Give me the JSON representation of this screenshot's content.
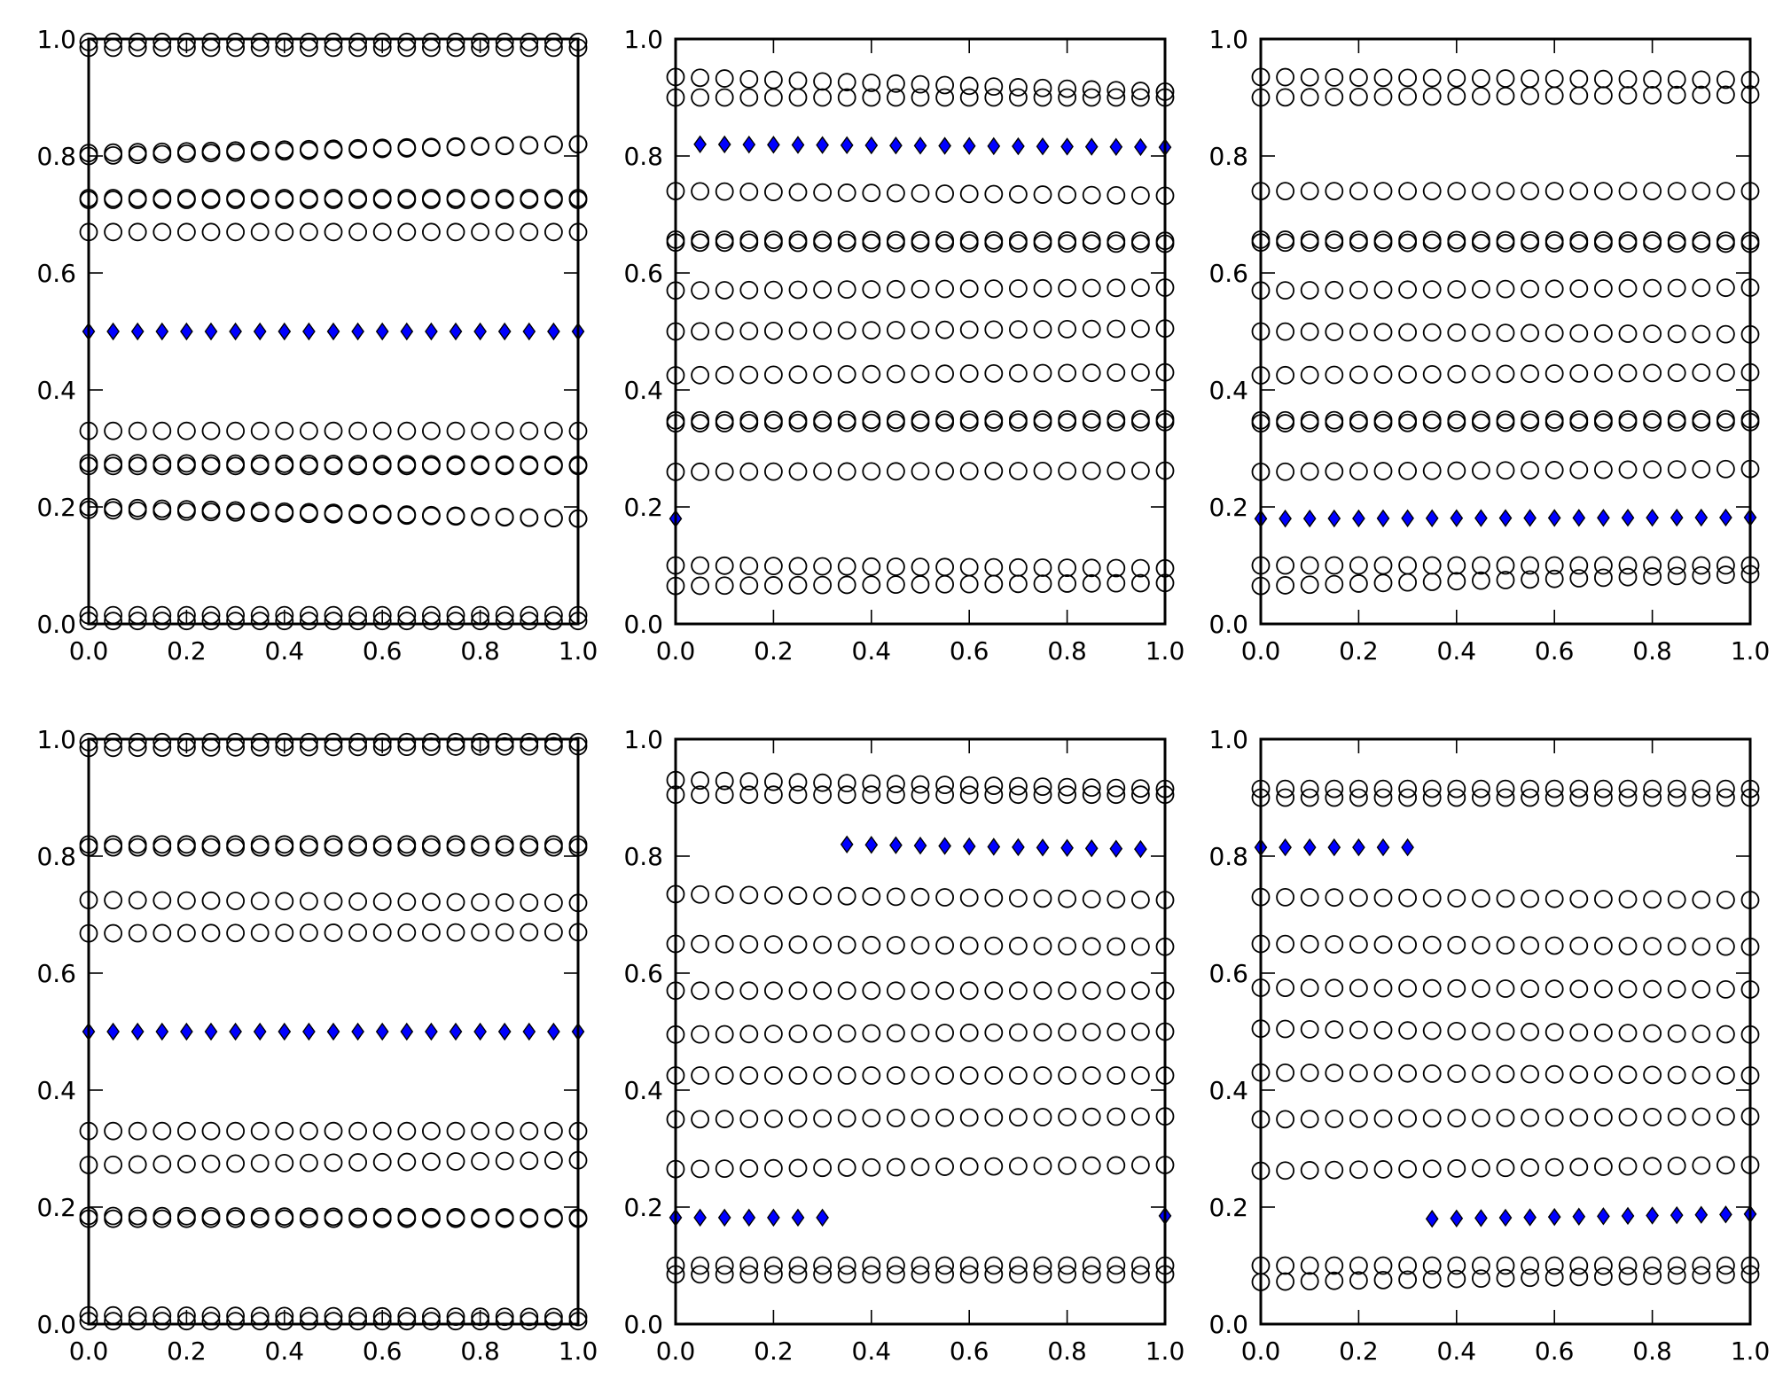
{
  "style": {
    "ring_color": "#000000",
    "diamond_fill": "#0000ff",
    "diamond_stroke": "#000000",
    "axis_color": "#000000",
    "background": "#ffffff"
  },
  "chart_data": [
    {
      "type": "scatter",
      "xlim": [
        0.0,
        1.0
      ],
      "ylim": [
        0.0,
        1.0
      ],
      "xticks": [
        "0.0",
        "0.2",
        "0.4",
        "0.6",
        "0.8",
        "1.0"
      ],
      "yticks": [
        "0.0",
        "0.2",
        "0.4",
        "0.6",
        "0.8",
        "1.0"
      ],
      "grid": false,
      "x": [
        0.0,
        0.05,
        0.1,
        0.15,
        0.2,
        0.25,
        0.3,
        0.35,
        0.4,
        0.45,
        0.5,
        0.55,
        0.6,
        0.65,
        0.7,
        0.75,
        0.8,
        0.85,
        0.9,
        0.95,
        1.0
      ],
      "ring_rows": [
        {
          "y_start": 0.005,
          "y_end": 0.005
        },
        {
          "y_start": 0.015,
          "y_end": 0.015
        },
        {
          "y_start": 0.2,
          "y_end": 0.18
        },
        {
          "y_start": 0.195,
          "y_end": 0.18
        },
        {
          "y_start": 0.27,
          "y_end": 0.27
        },
        {
          "y_start": 0.275,
          "y_end": 0.272
        },
        {
          "y_start": 0.33,
          "y_end": 0.33
        },
        {
          "y_start": 0.67,
          "y_end": 0.67
        },
        {
          "y_start": 0.725,
          "y_end": 0.725
        },
        {
          "y_start": 0.728,
          "y_end": 0.728
        },
        {
          "y_start": 0.8,
          "y_end": 0.82
        },
        {
          "y_start": 0.805,
          "y_end": 0.82
        },
        {
          "y_start": 0.985,
          "y_end": 0.985
        },
        {
          "y_start": 0.995,
          "y_end": 0.995
        }
      ],
      "diamond_segments": [
        {
          "x_from": 0.0,
          "x_to": 1.0,
          "y_start": 0.5,
          "y_end": 0.5
        }
      ]
    },
    {
      "type": "scatter",
      "xlim": [
        0.0,
        1.0
      ],
      "ylim": [
        0.0,
        1.0
      ],
      "xticks": [
        "0.0",
        "0.2",
        "0.4",
        "0.6",
        "0.8",
        "1.0"
      ],
      "yticks": [
        "0.0",
        "0.2",
        "0.4",
        "0.6",
        "0.8",
        "1.0"
      ],
      "grid": false,
      "x": [
        0.0,
        0.05,
        0.1,
        0.15,
        0.2,
        0.25,
        0.3,
        0.35,
        0.4,
        0.45,
        0.5,
        0.55,
        0.6,
        0.65,
        0.7,
        0.75,
        0.8,
        0.85,
        0.9,
        0.95,
        1.0
      ],
      "ring_rows": [
        {
          "y_start": 0.065,
          "y_end": 0.07
        },
        {
          "y_start": 0.1,
          "y_end": 0.095
        },
        {
          "y_start": 0.26,
          "y_end": 0.262
        },
        {
          "y_start": 0.343,
          "y_end": 0.345
        },
        {
          "y_start": 0.348,
          "y_end": 0.35
        },
        {
          "y_start": 0.425,
          "y_end": 0.43
        },
        {
          "y_start": 0.5,
          "y_end": 0.505
        },
        {
          "y_start": 0.57,
          "y_end": 0.575
        },
        {
          "y_start": 0.652,
          "y_end": 0.65
        },
        {
          "y_start": 0.657,
          "y_end": 0.655
        },
        {
          "y_start": 0.74,
          "y_end": 0.732
        },
        {
          "y_start": 0.9,
          "y_end": 0.9
        },
        {
          "y_start": 0.935,
          "y_end": 0.91
        }
      ],
      "diamond_segments": [
        {
          "x_from": 0.0,
          "x_to": 0.0,
          "y_start": 0.18,
          "y_end": 0.18
        },
        {
          "x_from": 0.05,
          "x_to": 1.0,
          "y_start": 0.82,
          "y_end": 0.815
        }
      ]
    },
    {
      "type": "scatter",
      "xlim": [
        0.0,
        1.0
      ],
      "ylim": [
        0.0,
        1.0
      ],
      "xticks": [
        "0.0",
        "0.2",
        "0.4",
        "0.6",
        "0.8",
        "1.0"
      ],
      "yticks": [
        "0.0",
        "0.2",
        "0.4",
        "0.6",
        "0.8",
        "1.0"
      ],
      "grid": false,
      "x": [
        0.0,
        0.05,
        0.1,
        0.15,
        0.2,
        0.25,
        0.3,
        0.35,
        0.4,
        0.45,
        0.5,
        0.55,
        0.6,
        0.65,
        0.7,
        0.75,
        0.8,
        0.85,
        0.9,
        0.95,
        1.0
      ],
      "ring_rows": [
        {
          "y_start": 0.065,
          "y_end": 0.085
        },
        {
          "y_start": 0.1,
          "y_end": 0.1
        },
        {
          "y_start": 0.26,
          "y_end": 0.265
        },
        {
          "y_start": 0.343,
          "y_end": 0.345
        },
        {
          "y_start": 0.348,
          "y_end": 0.35
        },
        {
          "y_start": 0.425,
          "y_end": 0.43
        },
        {
          "y_start": 0.5,
          "y_end": 0.495
        },
        {
          "y_start": 0.57,
          "y_end": 0.575
        },
        {
          "y_start": 0.652,
          "y_end": 0.65
        },
        {
          "y_start": 0.657,
          "y_end": 0.655
        },
        {
          "y_start": 0.74,
          "y_end": 0.74
        },
        {
          "y_start": 0.9,
          "y_end": 0.905
        },
        {
          "y_start": 0.935,
          "y_end": 0.93
        }
      ],
      "diamond_segments": [
        {
          "x_from": 0.0,
          "x_to": 1.0,
          "y_start": 0.18,
          "y_end": 0.182
        }
      ]
    },
    {
      "type": "scatter",
      "xlim": [
        0.0,
        1.0
      ],
      "ylim": [
        0.0,
        1.0
      ],
      "xticks": [
        "0.0",
        "0.2",
        "0.4",
        "0.6",
        "0.8",
        "1.0"
      ],
      "yticks": [
        "0.0",
        "0.2",
        "0.4",
        "0.6",
        "0.8",
        "1.0"
      ],
      "grid": false,
      "x": [
        0.0,
        0.05,
        0.1,
        0.15,
        0.2,
        0.25,
        0.3,
        0.35,
        0.4,
        0.45,
        0.5,
        0.55,
        0.6,
        0.65,
        0.7,
        0.75,
        0.8,
        0.85,
        0.9,
        0.95,
        1.0
      ],
      "ring_rows": [
        {
          "y_start": 0.005,
          "y_end": 0.005
        },
        {
          "y_start": 0.015,
          "y_end": 0.012
        },
        {
          "y_start": 0.18,
          "y_end": 0.18
        },
        {
          "y_start": 0.185,
          "y_end": 0.182
        },
        {
          "y_start": 0.272,
          "y_end": 0.28
        },
        {
          "y_start": 0.33,
          "y_end": 0.33
        },
        {
          "y_start": 0.668,
          "y_end": 0.67
        },
        {
          "y_start": 0.725,
          "y_end": 0.72
        },
        {
          "y_start": 0.82,
          "y_end": 0.82
        },
        {
          "y_start": 0.815,
          "y_end": 0.815
        },
        {
          "y_start": 0.985,
          "y_end": 0.988
        },
        {
          "y_start": 0.995,
          "y_end": 0.995
        }
      ],
      "diamond_segments": [
        {
          "x_from": 0.0,
          "x_to": 1.0,
          "y_start": 0.5,
          "y_end": 0.5
        }
      ]
    },
    {
      "type": "scatter",
      "xlim": [
        0.0,
        1.0
      ],
      "ylim": [
        0.0,
        1.0
      ],
      "xticks": [
        "0.0",
        "0.2",
        "0.4",
        "0.6",
        "0.8",
        "1.0"
      ],
      "yticks": [
        "0.0",
        "0.2",
        "0.4",
        "0.6",
        "0.8",
        "1.0"
      ],
      "grid": false,
      "x": [
        0.0,
        0.05,
        0.1,
        0.15,
        0.2,
        0.25,
        0.3,
        0.35,
        0.4,
        0.45,
        0.5,
        0.55,
        0.6,
        0.65,
        0.7,
        0.75,
        0.8,
        0.85,
        0.9,
        0.95,
        1.0
      ],
      "ring_rows": [
        {
          "y_start": 0.085,
          "y_end": 0.085
        },
        {
          "y_start": 0.1,
          "y_end": 0.1
        },
        {
          "y_start": 0.265,
          "y_end": 0.272
        },
        {
          "y_start": 0.35,
          "y_end": 0.355
        },
        {
          "y_start": 0.425,
          "y_end": 0.425
        },
        {
          "y_start": 0.495,
          "y_end": 0.5
        },
        {
          "y_start": 0.57,
          "y_end": 0.57
        },
        {
          "y_start": 0.65,
          "y_end": 0.645
        },
        {
          "y_start": 0.735,
          "y_end": 0.725
        },
        {
          "y_start": 0.905,
          "y_end": 0.905
        },
        {
          "y_start": 0.93,
          "y_end": 0.915
        }
      ],
      "diamond_segments": [
        {
          "x_from": 0.0,
          "x_to": 0.3,
          "y_start": 0.182,
          "y_end": 0.182
        },
        {
          "x_from": 0.35,
          "x_to": 0.95,
          "y_start": 0.82,
          "y_end": 0.812
        },
        {
          "x_from": 1.0,
          "x_to": 1.0,
          "y_start": 0.185,
          "y_end": 0.185
        }
      ]
    },
    {
      "type": "scatter",
      "xlim": [
        0.0,
        1.0
      ],
      "ylim": [
        0.0,
        1.0
      ],
      "xticks": [
        "0.0",
        "0.2",
        "0.4",
        "0.6",
        "0.8",
        "1.0"
      ],
      "yticks": [
        "0.0",
        "0.2",
        "0.4",
        "0.6",
        "0.8",
        "1.0"
      ],
      "grid": false,
      "x": [
        0.0,
        0.05,
        0.1,
        0.15,
        0.2,
        0.25,
        0.3,
        0.35,
        0.4,
        0.45,
        0.5,
        0.55,
        0.6,
        0.65,
        0.7,
        0.75,
        0.8,
        0.85,
        0.9,
        0.95,
        1.0
      ],
      "ring_rows": [
        {
          "y_start": 0.072,
          "y_end": 0.085
        },
        {
          "y_start": 0.1,
          "y_end": 0.1
        },
        {
          "y_start": 0.262,
          "y_end": 0.272
        },
        {
          "y_start": 0.35,
          "y_end": 0.355
        },
        {
          "y_start": 0.43,
          "y_end": 0.425
        },
        {
          "y_start": 0.505,
          "y_end": 0.495
        },
        {
          "y_start": 0.575,
          "y_end": 0.572
        },
        {
          "y_start": 0.65,
          "y_end": 0.645
        },
        {
          "y_start": 0.73,
          "y_end": 0.725
        },
        {
          "y_start": 0.9,
          "y_end": 0.9
        },
        {
          "y_start": 0.915,
          "y_end": 0.915
        }
      ],
      "diamond_segments": [
        {
          "x_from": 0.0,
          "x_to": 0.3,
          "y_start": 0.815,
          "y_end": 0.815
        },
        {
          "x_from": 0.35,
          "x_to": 1.0,
          "y_start": 0.18,
          "y_end": 0.188
        }
      ]
    }
  ]
}
